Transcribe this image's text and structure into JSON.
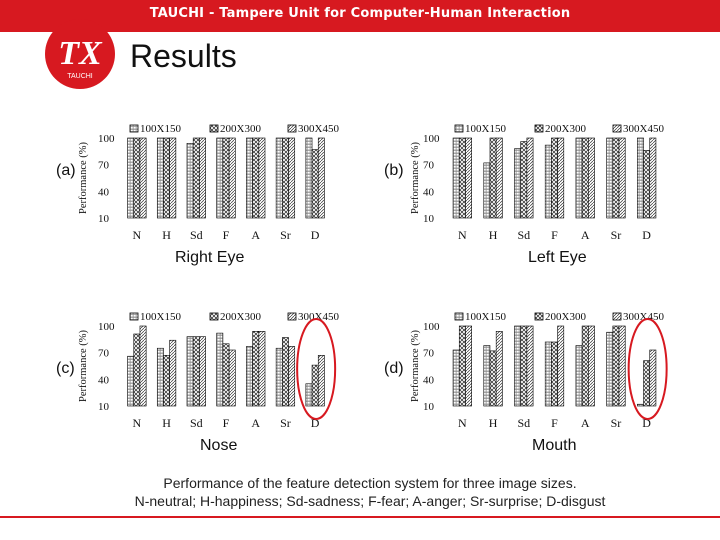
{
  "header": {
    "title": "TAUCHI - Tampere Unit for Computer-Human Interaction",
    "logo_letters": "TX",
    "logo_sub": "TAUCHI",
    "accent": "#d71920"
  },
  "page_title": "Results",
  "caption": {
    "line1": "Performance of the feature detection system for three image sizes.",
    "line2": "N-neutral; H-happiness; Sd-sadness; F-fear; A-anger; Sr-surprise; D-disgust"
  },
  "chart_data": [
    {
      "type": "bar",
      "label": "(a)",
      "title": "Right Eye",
      "ylabel": "Performance (%)",
      "categories": [
        "N",
        "H",
        "Sd",
        "F",
        "A",
        "Sr",
        "D"
      ],
      "ylim": [
        10,
        100
      ],
      "yticks": [
        10,
        40,
        70,
        100
      ],
      "legend_position": "top",
      "series": [
        {
          "name": "100X150",
          "values": [
            100,
            100,
            94,
            100,
            100,
            100,
            100
          ]
        },
        {
          "name": "200X300",
          "values": [
            100,
            100,
            100,
            100,
            100,
            100,
            87
          ]
        },
        {
          "name": "300X450",
          "values": [
            100,
            100,
            100,
            100,
            100,
            100,
            100
          ]
        }
      ]
    },
    {
      "type": "bar",
      "label": "(b)",
      "title": "Left Eye",
      "ylabel": "Performance (%)",
      "categories": [
        "N",
        "H",
        "Sd",
        "F",
        "A",
        "Sr",
        "D"
      ],
      "ylim": [
        10,
        100
      ],
      "yticks": [
        10,
        40,
        70,
        100
      ],
      "legend_position": "top",
      "series": [
        {
          "name": "100X150",
          "values": [
            100,
            72,
            88,
            92,
            100,
            100,
            100
          ]
        },
        {
          "name": "200X300",
          "values": [
            100,
            100,
            96,
            100,
            100,
            100,
            86
          ]
        },
        {
          "name": "300X450",
          "values": [
            100,
            100,
            100,
            100,
            100,
            100,
            100
          ]
        }
      ]
    },
    {
      "type": "bar",
      "label": "(c)",
      "title": "Nose",
      "ylabel": "Performance (%)",
      "categories": [
        "N",
        "H",
        "Sd",
        "F",
        "A",
        "Sr",
        "D"
      ],
      "ylim": [
        10,
        100
      ],
      "yticks": [
        10,
        40,
        70,
        100
      ],
      "legend_position": "top",
      "series": [
        {
          "name": "100X150",
          "values": [
            66,
            75,
            88,
            92,
            77,
            75,
            35
          ]
        },
        {
          "name": "200X300",
          "values": [
            91,
            67,
            88,
            80,
            94,
            87,
            56
          ]
        },
        {
          "name": "300X450",
          "values": [
            100,
            84,
            88,
            73,
            94,
            77,
            67
          ]
        }
      ]
    },
    {
      "type": "bar",
      "label": "(d)",
      "title": "Mouth",
      "ylabel": "Performance (%)",
      "categories": [
        "N",
        "H",
        "Sd",
        "F",
        "A",
        "Sr",
        "D"
      ],
      "ylim": [
        10,
        100
      ],
      "yticks": [
        10,
        40,
        70,
        100
      ],
      "legend_position": "top",
      "series": [
        {
          "name": "100X150",
          "values": [
            73,
            78,
            100,
            82,
            78,
            93,
            12
          ]
        },
        {
          "name": "200X300",
          "values": [
            100,
            72,
            100,
            82,
            100,
            100,
            61
          ]
        },
        {
          "name": "300X450",
          "values": [
            100,
            94,
            100,
            100,
            100,
            100,
            73
          ]
        }
      ]
    }
  ]
}
